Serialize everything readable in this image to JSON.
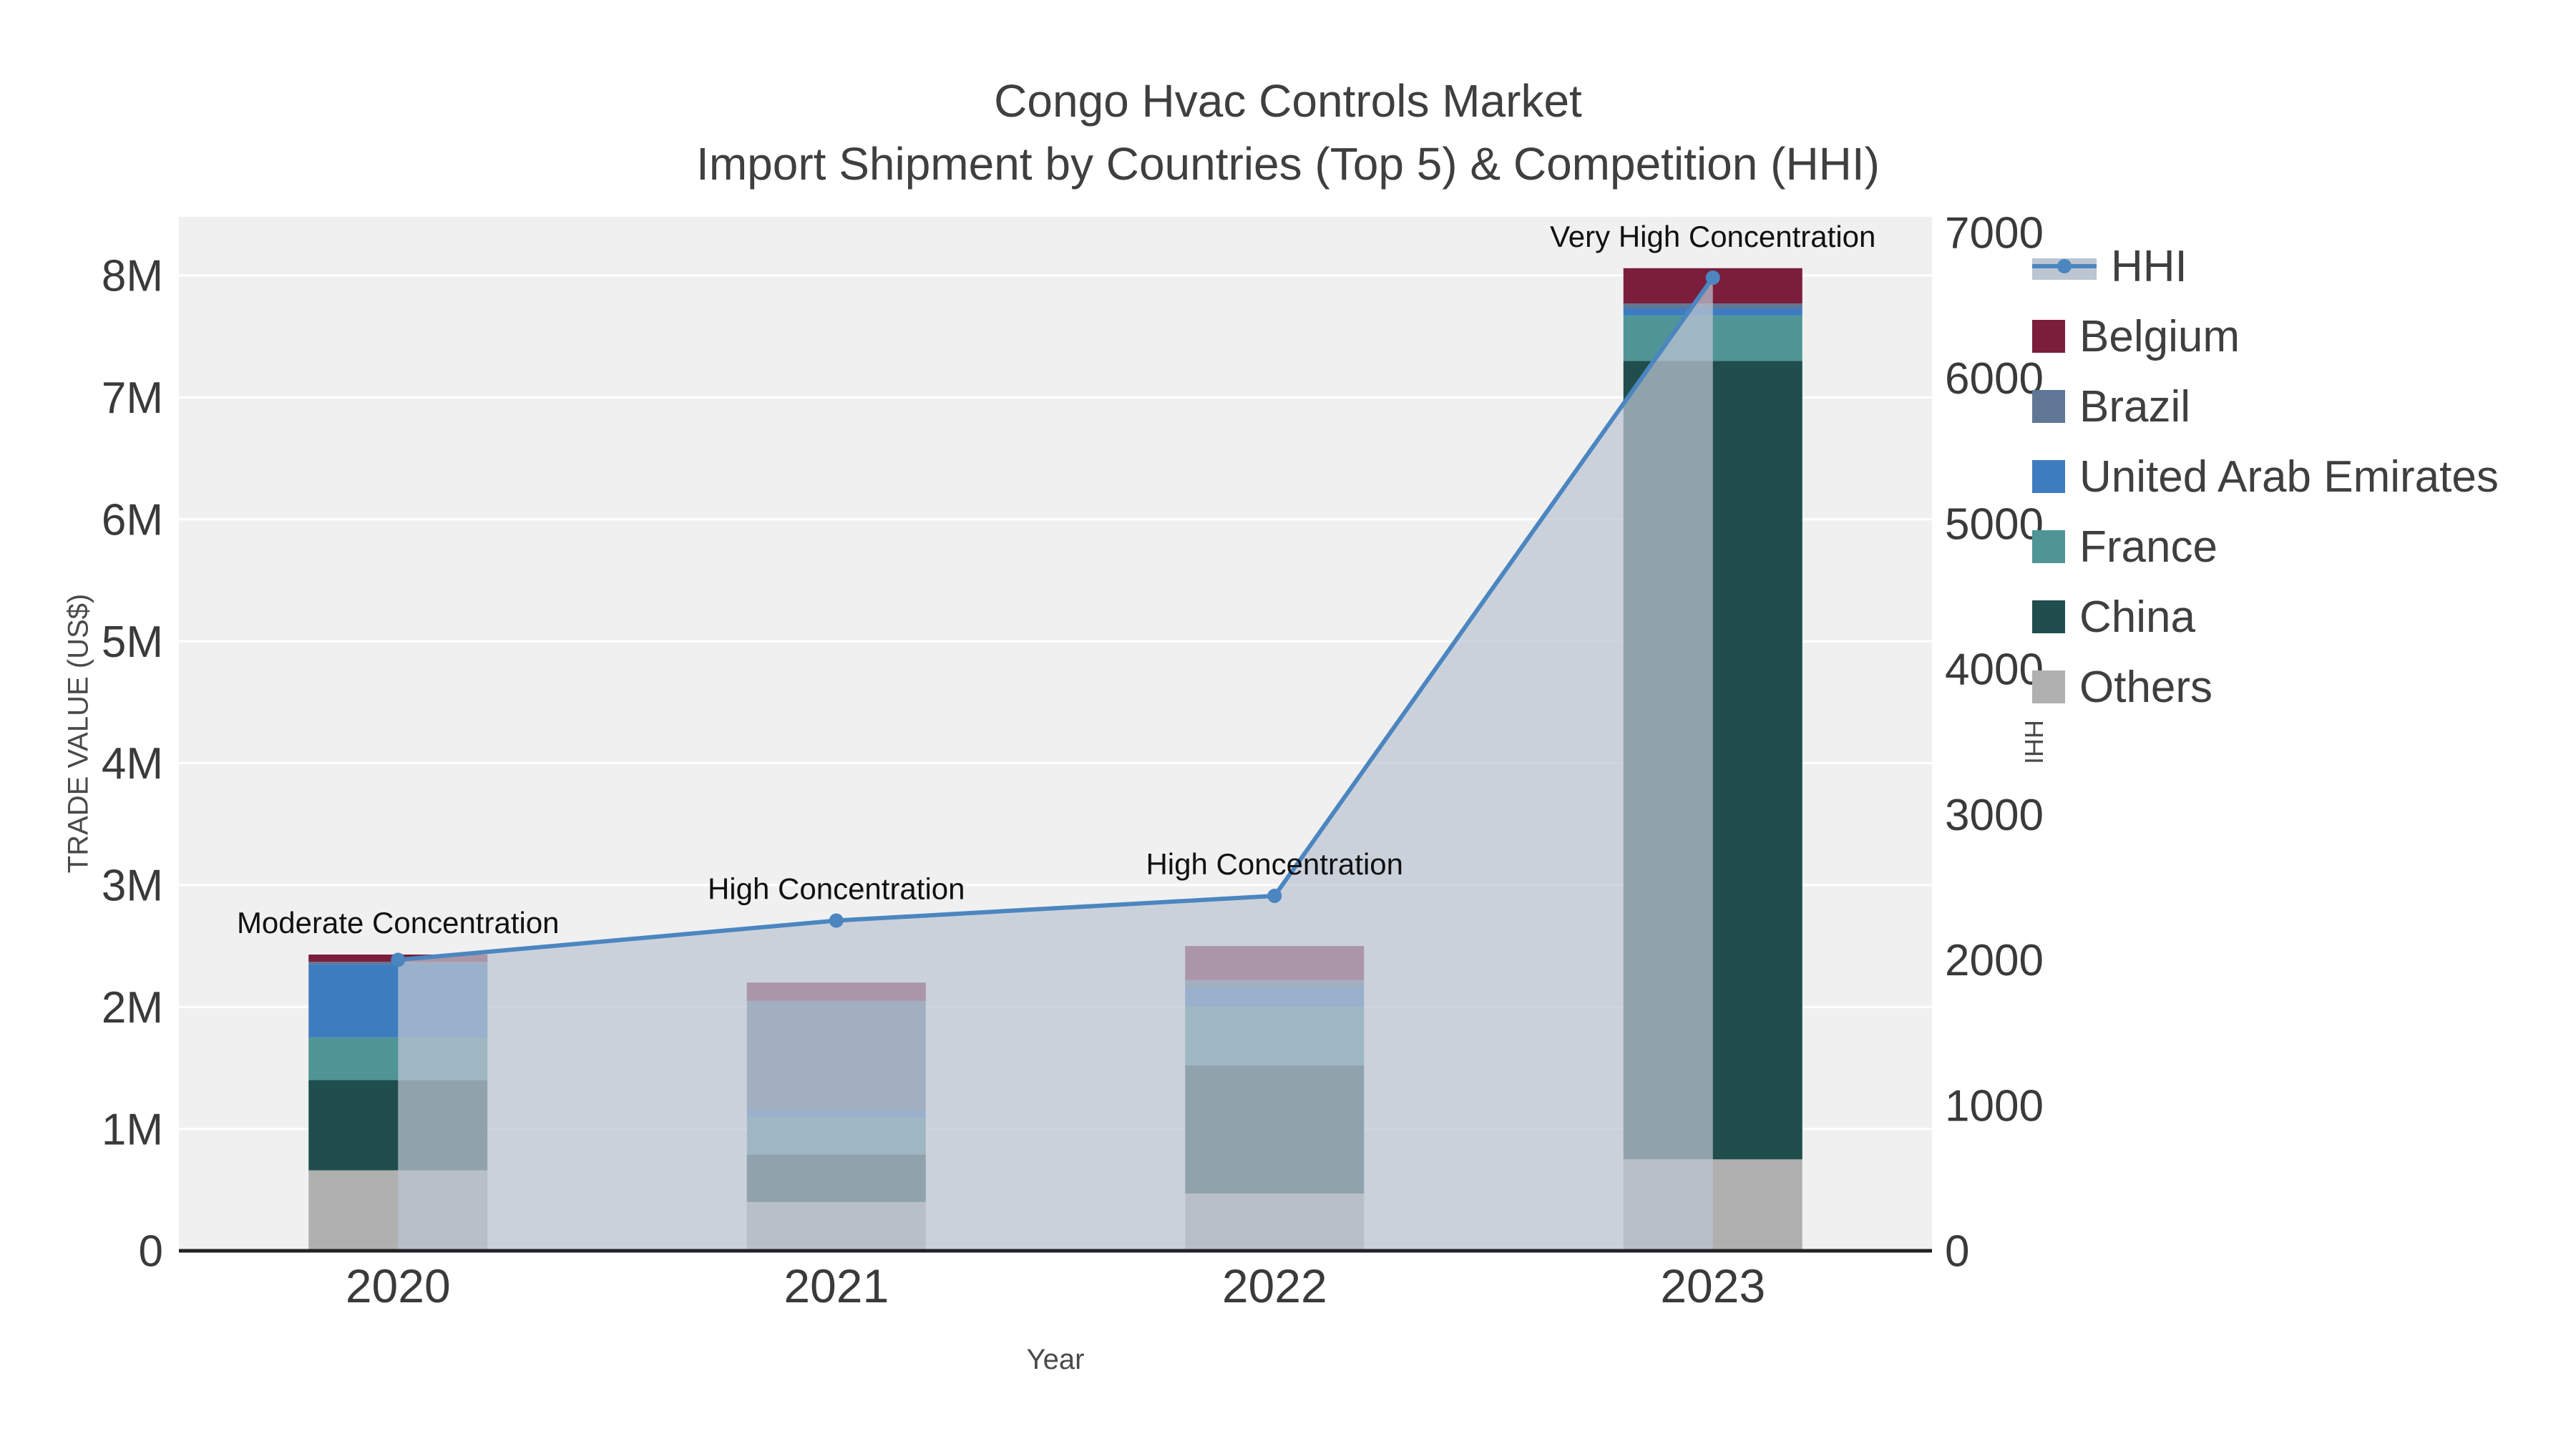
{
  "title": {
    "line1": "Congo Hvac Controls Market",
    "line2": "Import Shipment by Countries (Top 5) & Competition (HHI)"
  },
  "axes": {
    "y_left": {
      "label": "TRADE VALUE (US$)",
      "ticks": [
        "0",
        "1M",
        "2M",
        "3M",
        "4M",
        "5M",
        "6M",
        "7M",
        "8M"
      ]
    },
    "y_right": {
      "label": "HHI",
      "ticks": [
        "0",
        "1000",
        "2000",
        "3000",
        "4000",
        "5000",
        "6000",
        "7000"
      ]
    },
    "x": {
      "label": "Year",
      "ticks": [
        "2020",
        "2021",
        "2022",
        "2023"
      ]
    }
  },
  "legend": {
    "items": [
      "HHI",
      "Belgium",
      "Brazil",
      "United Arab Emirates",
      "France",
      "China",
      "Others"
    ]
  },
  "colors": {
    "hhi_line": "#4c86c0",
    "hhi_fill": "#bcc5d2",
    "plot_bg": "#f0f0f0",
    "grid": "#ffffff",
    "axis_line": "#222222",
    "tick_text": "#3a3a3a",
    "annotation_text": "#111111"
  },
  "chart_data": {
    "type": "bar",
    "subtype": "stacked-bars-with-line",
    "title": "Congo Hvac Controls Market — Import Shipment by Countries (Top 5) & Competition (HHI)",
    "xlabel": "Year",
    "ylabel": "TRADE VALUE (US$)",
    "y2label": "HHI",
    "ylim": [
      0,
      8000000
    ],
    "y2lim": [
      0,
      7000
    ],
    "categories": [
      "2020",
      "2021",
      "2022",
      "2023"
    ],
    "bar_series": [
      {
        "name": "Others",
        "color": "#b0b0b0",
        "values": [
          660000,
          400000,
          470000,
          750000
        ]
      },
      {
        "name": "China",
        "color": "#1f4e4c",
        "values": [
          740000,
          390000,
          1050000,
          6550000
        ]
      },
      {
        "name": "France",
        "color": "#4f9596",
        "values": [
          350000,
          300000,
          480000,
          370000
        ]
      },
      {
        "name": "United Arab Emirates",
        "color": "#3d7dbf",
        "values": [
          600000,
          60000,
          160000,
          60000
        ]
      },
      {
        "name": "Brazil",
        "color": "#5f7795",
        "values": [
          20000,
          900000,
          60000,
          40000
        ]
      },
      {
        "name": "Belgium",
        "color": "#7a1e3c",
        "values": [
          60000,
          150000,
          280000,
          290000
        ]
      }
    ],
    "line_series": {
      "name": "HHI",
      "color": "#4c86c0",
      "fill": "#bcc5d2",
      "fill_opacity": 0.72,
      "values": [
        2000,
        2270,
        2440,
        6690
      ]
    },
    "annotations": [
      {
        "index": 0,
        "text": "Moderate Concentration"
      },
      {
        "index": 1,
        "text": "High Concentration"
      },
      {
        "index": 2,
        "text": "High Concentration"
      },
      {
        "index": 3,
        "text": "Very High Concentration"
      }
    ],
    "legend_position": "right",
    "grid": true
  }
}
